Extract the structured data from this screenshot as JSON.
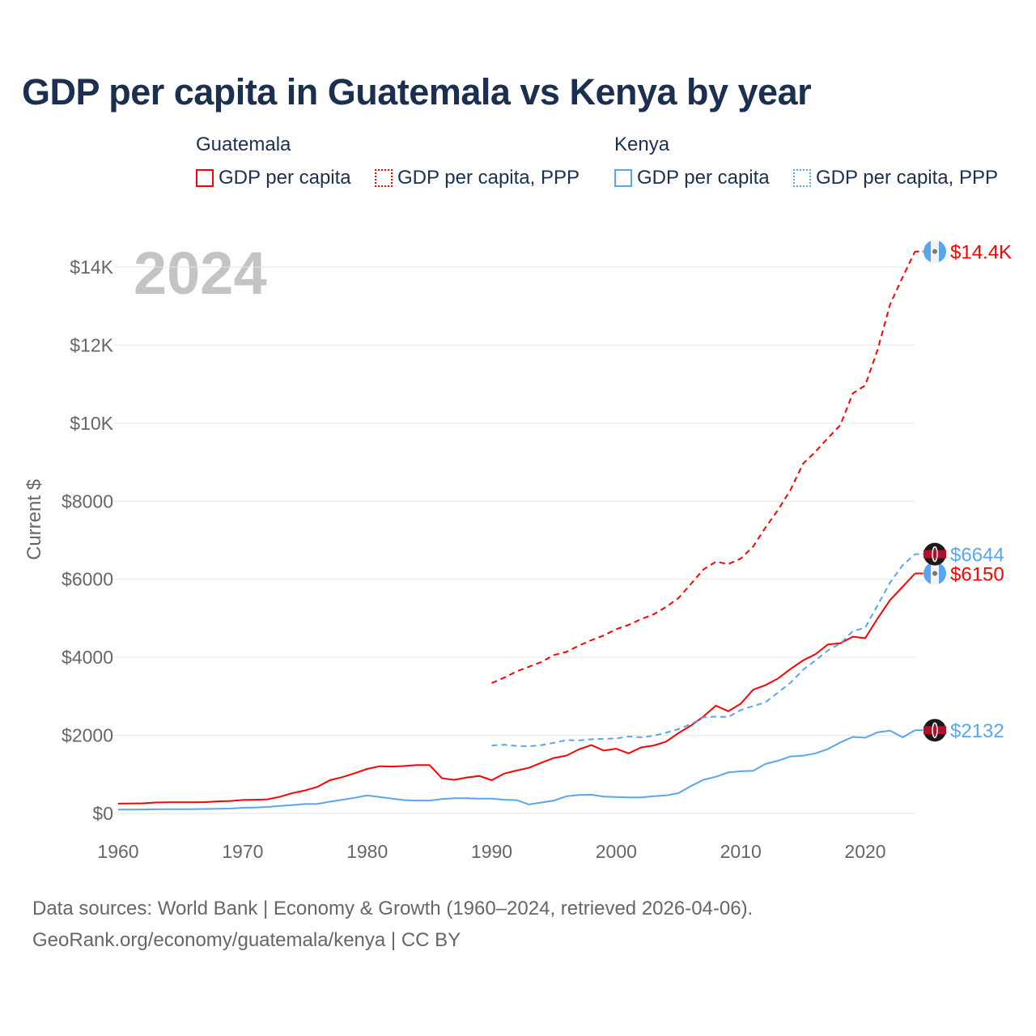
{
  "chart_data": {
    "type": "line",
    "title": "GDP per capita in Guatemala vs Kenya by year",
    "xlabel": "",
    "ylabel": "Current $",
    "xlim": [
      1960,
      2024
    ],
    "ylim": [
      0,
      14500
    ],
    "x_ticks": [
      "1960",
      "1970",
      "1980",
      "1990",
      "2000",
      "2010",
      "2020"
    ],
    "y_ticks": [
      {
        "v": 0,
        "label": "$0"
      },
      {
        "v": 2000,
        "label": "$2000"
      },
      {
        "v": 4000,
        "label": "$4000"
      },
      {
        "v": 6000,
        "label": "$6000"
      },
      {
        "v": 8000,
        "label": "$8000"
      },
      {
        "v": 10000,
        "label": "$10K"
      },
      {
        "v": 12000,
        "label": "$12K"
      },
      {
        "v": 14000,
        "label": "$14K"
      }
    ],
    "grid": true,
    "year_watermark": "2024",
    "legend": {
      "placement": "top",
      "groups": [
        {
          "label": "Guatemala",
          "items": [
            "GDP per capita",
            "GDP per capita, PPP"
          ]
        },
        {
          "label": "Kenya",
          "items": [
            "GDP per capita",
            "GDP per capita, PPP"
          ]
        }
      ]
    },
    "series": [
      {
        "name": "Guatemala GDP per capita",
        "country": "Guatemala",
        "color": "#ff0000",
        "dash": false,
        "end_label": "$6150",
        "start_year": 1960,
        "values": [
          250,
          255,
          260,
          280,
          285,
          285,
          285,
          290,
          310,
          320,
          345,
          350,
          360,
          430,
          520,
          590,
          680,
          850,
          930,
          1030,
          1140,
          1210,
          1200,
          1215,
          1240,
          1240,
          900,
          860,
          920,
          960,
          850,
          1020,
          1100,
          1170,
          1300,
          1420,
          1480,
          1640,
          1750,
          1610,
          1660,
          1540,
          1690,
          1740,
          1840,
          2060,
          2250,
          2480,
          2760,
          2620,
          2810,
          3170,
          3290,
          3460,
          3700,
          3920,
          4080,
          4330,
          4360,
          4530,
          4490,
          5000,
          5470,
          5810,
          6150
        ]
      },
      {
        "name": "Guatemala GDP per capita, PPP",
        "country": "Guatemala",
        "color": "#ff0000",
        "dash": true,
        "end_label": "$14.4K",
        "start_year": 1990,
        "values": [
          3340,
          3480,
          3640,
          3760,
          3880,
          4060,
          4140,
          4300,
          4440,
          4560,
          4720,
          4830,
          4980,
          5100,
          5290,
          5520,
          5880,
          6250,
          6450,
          6390,
          6530,
          6840,
          7330,
          7780,
          8290,
          8960,
          9270,
          9620,
          9950,
          10760,
          10970,
          11890,
          13050,
          13740,
          14400
        ]
      },
      {
        "name": "Kenya GDP per capita",
        "country": "Kenya",
        "color": "#5aa5f0",
        "dash": false,
        "end_label": "$2132",
        "start_year": 1960,
        "values": [
          100,
          98,
          102,
          105,
          108,
          108,
          110,
          115,
          120,
          125,
          145,
          150,
          165,
          190,
          215,
          240,
          245,
          300,
          350,
          400,
          460,
          420,
          380,
          340,
          330,
          330,
          370,
          390,
          390,
          380,
          380,
          350,
          340,
          230,
          280,
          330,
          440,
          470,
          480,
          430,
          420,
          410,
          410,
          440,
          460,
          520,
          700,
          860,
          940,
          1050,
          1080,
          1090,
          1270,
          1350,
          1460,
          1480,
          1540,
          1650,
          1820,
          1960,
          1940,
          2080,
          2120,
          1950,
          2132
        ]
      },
      {
        "name": "Kenya GDP per capita, PPP",
        "country": "Kenya",
        "color": "#5aa5f0",
        "dash": true,
        "end_label": "$6644",
        "start_year": 1990,
        "values": [
          1740,
          1760,
          1730,
          1720,
          1750,
          1810,
          1880,
          1870,
          1900,
          1910,
          1920,
          1970,
          1950,
          1990,
          2070,
          2160,
          2290,
          2460,
          2480,
          2470,
          2650,
          2750,
          2850,
          3100,
          3350,
          3680,
          3920,
          4180,
          4350,
          4670,
          4760,
          5340,
          5920,
          6360,
          6644
        ]
      }
    ]
  },
  "footer": {
    "line1": "Data sources: World Bank | Economy & Growth (1960–2024, retrieved 2026-04-06).",
    "line2": "GeoRank.org/economy/guatemala/kenya | CC BY"
  }
}
